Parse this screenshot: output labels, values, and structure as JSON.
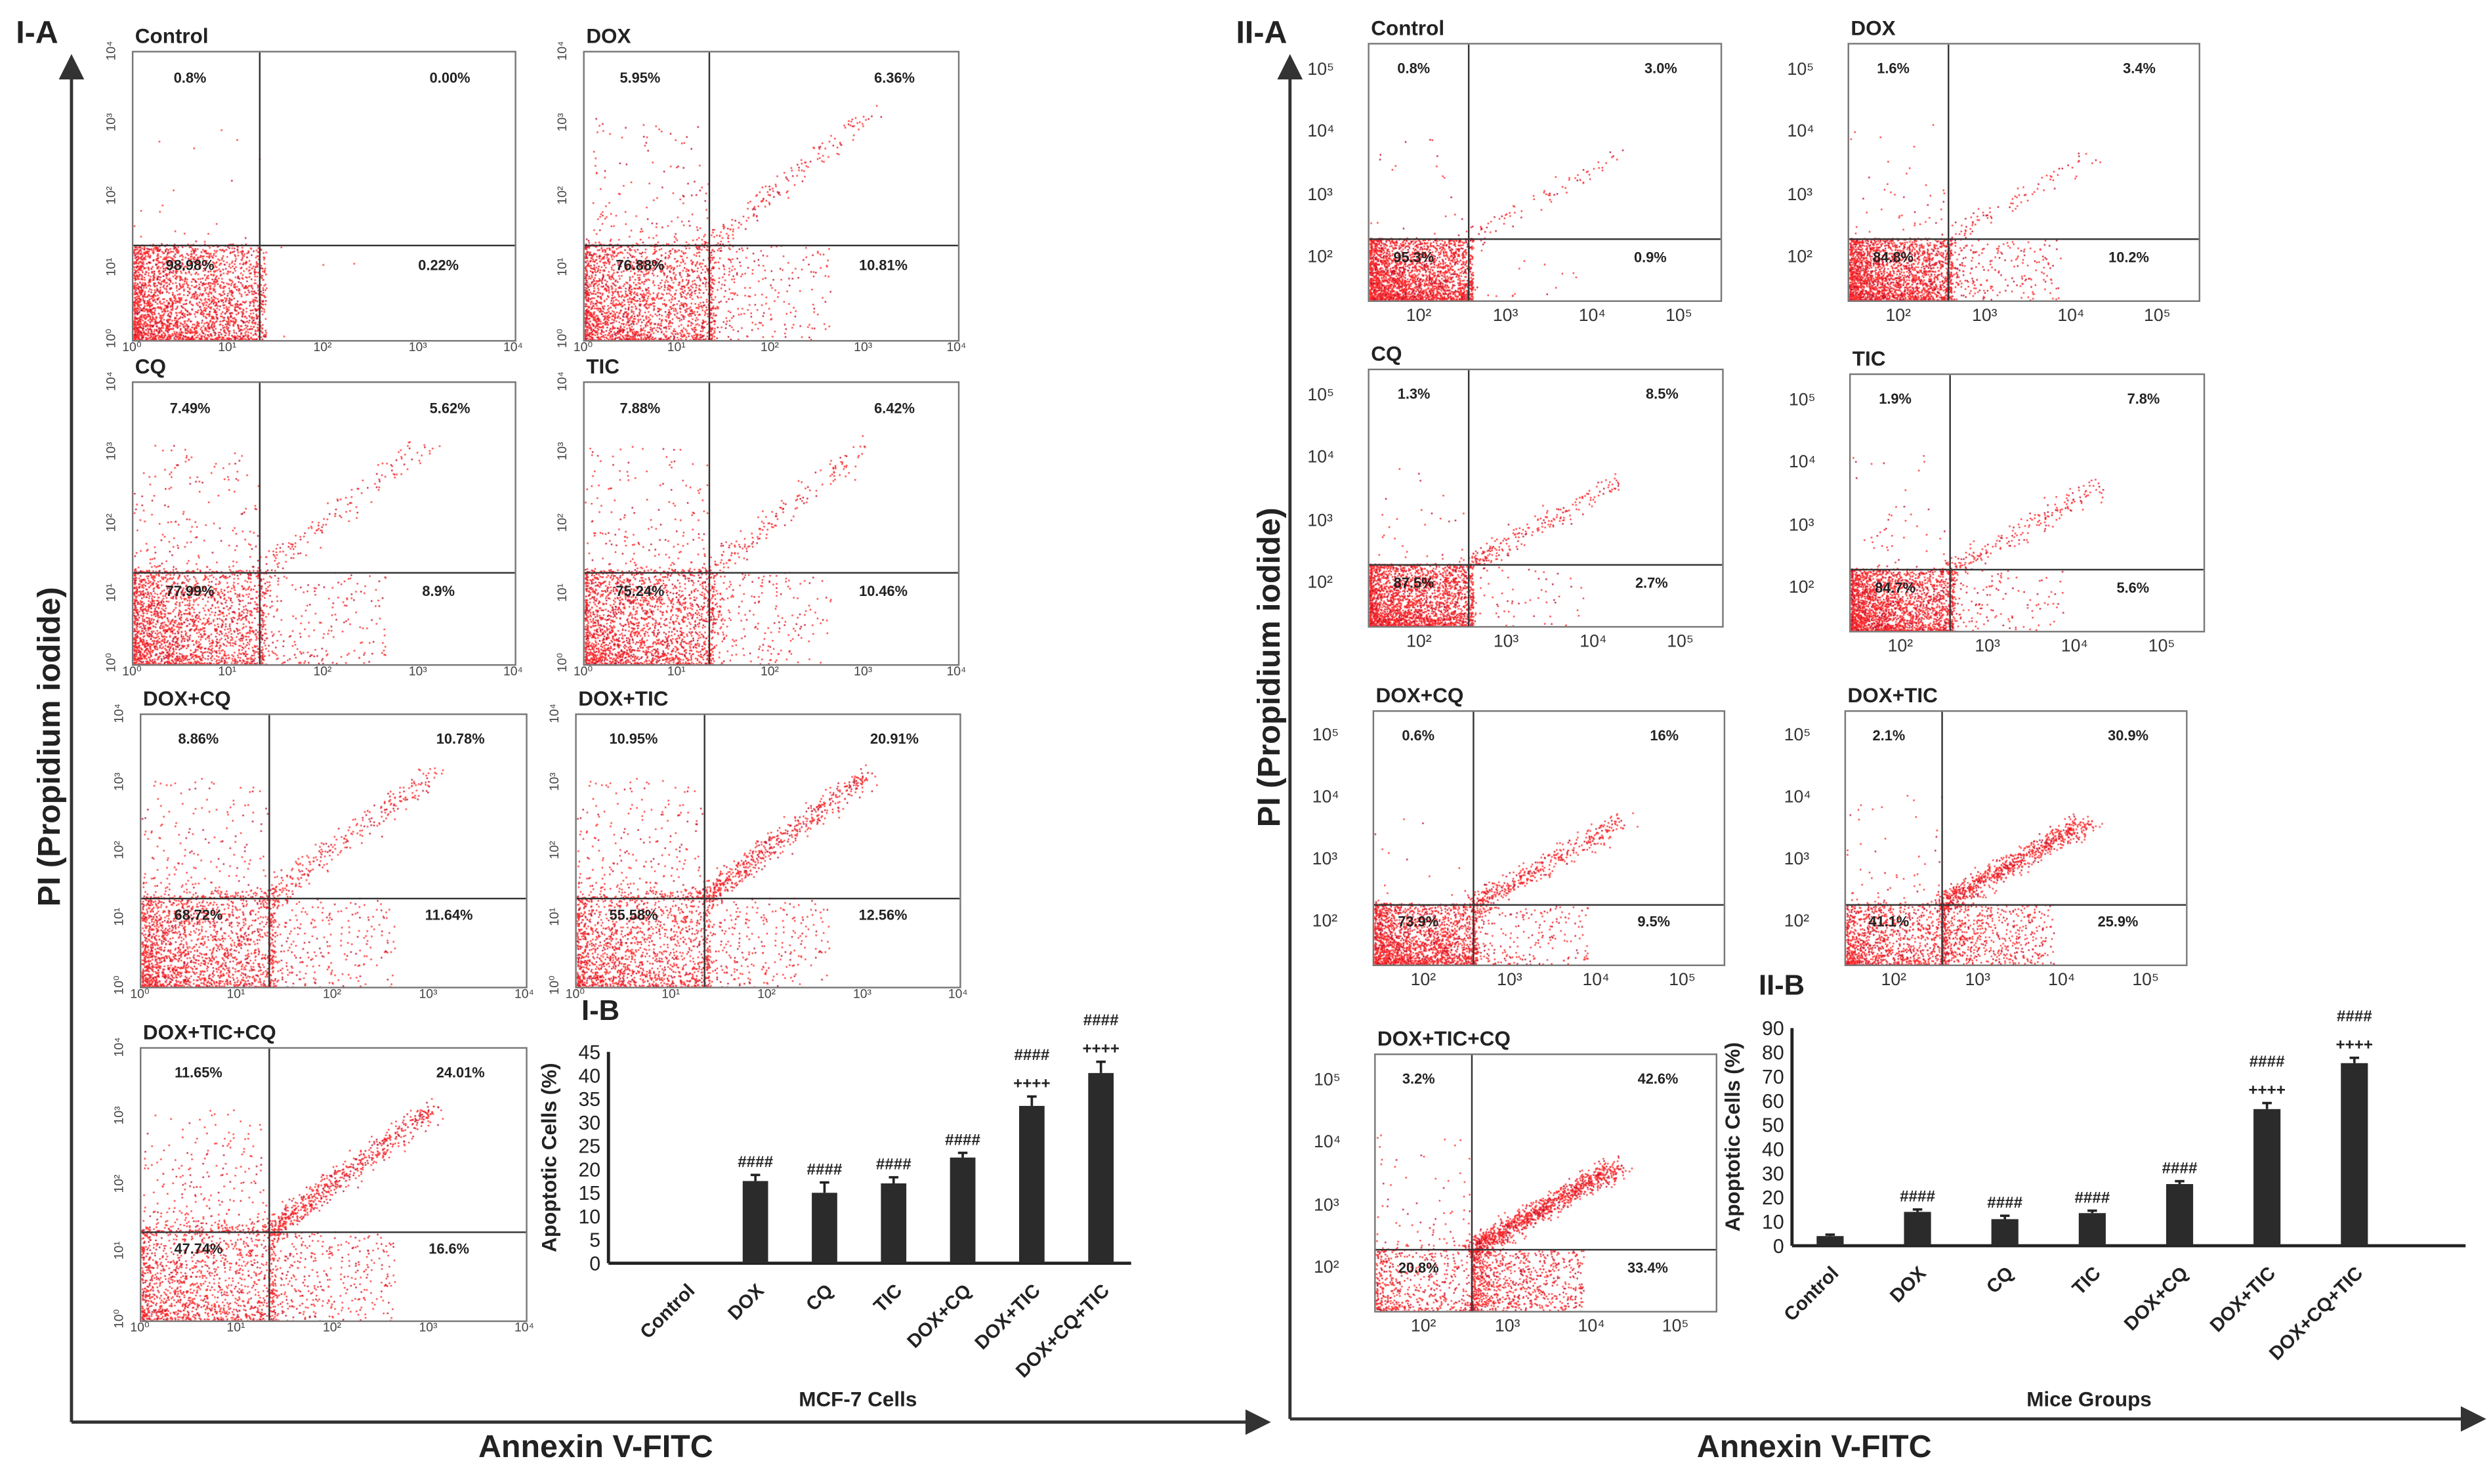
{
  "panel_labels": {
    "IA": "I-A",
    "IB": "I-B",
    "IIA": "II-A",
    "IIB": "II-B"
  },
  "axes": {
    "y_label": "PI (Propidium iodide)",
    "x_label": "Annexin V-FITC"
  },
  "colors": {
    "dots": "#ff2a2a",
    "dots_dark": "#c0102a",
    "bars": "#2b2b2b"
  },
  "chart_data": [
    {
      "type": "scatter",
      "id": "I-A",
      "x_ticks": [
        "10⁰",
        "10¹",
        "10²",
        "10³",
        "10⁴"
      ],
      "y_ticks": [
        "10⁰",
        "10¹",
        "10²",
        "10³",
        "10⁴"
      ],
      "panels": [
        {
          "title": "Control",
          "quadrants": {
            "UL": "0.8%",
            "UR": "0.00%",
            "LL": "98.98%",
            "LR": "0.22%"
          }
        },
        {
          "title": "DOX",
          "quadrants": {
            "UL": "5.95%",
            "UR": "6.36%",
            "LL": "76.88%",
            "LR": "10.81%"
          }
        },
        {
          "title": "CQ",
          "quadrants": {
            "UL": "7.49%",
            "UR": "5.62%",
            "LL": "77.99%",
            "LR": "8.9%"
          }
        },
        {
          "title": "TIC",
          "quadrants": {
            "UL": "7.88%",
            "UR": "6.42%",
            "LL": "75.24%",
            "LR": "10.46%"
          }
        },
        {
          "title": "DOX+CQ",
          "quadrants": {
            "UL": "8.86%",
            "UR": "10.78%",
            "LL": "68.72%",
            "LR": "11.64%"
          }
        },
        {
          "title": "DOX+TIC",
          "quadrants": {
            "UL": "10.95%",
            "UR": "20.91%",
            "LL": "55.58%",
            "LR": "12.56%"
          }
        },
        {
          "title": "DOX+TIC+CQ",
          "quadrants": {
            "UL": "11.65%",
            "UR": "24.01%",
            "LL": "47.74%",
            "LR": "16.6%"
          }
        }
      ]
    },
    {
      "type": "scatter",
      "id": "II-A",
      "x_ticks": [
        "10²",
        "10³",
        "10⁴",
        "10⁵"
      ],
      "y_ticks": [
        "10²",
        "10³",
        "10⁴",
        "10⁵"
      ],
      "panels": [
        {
          "title": "Control",
          "quadrants": {
            "UL": "0.8%",
            "UR": "3.0%",
            "LL": "95.3%",
            "LR": "0.9%"
          }
        },
        {
          "title": "DOX",
          "quadrants": {
            "UL": "1.6%",
            "UR": "3.4%",
            "LL": "84.8%",
            "LR": "10.2%"
          }
        },
        {
          "title": "CQ",
          "quadrants": {
            "UL": "1.3%",
            "UR": "8.5%",
            "LL": "87.5%",
            "LR": "2.7%"
          }
        },
        {
          "title": "TIC",
          "quadrants": {
            "UL": "1.9%",
            "UR": "7.8%",
            "LL": "84.7%",
            "LR": "5.6%"
          }
        },
        {
          "title": "DOX+CQ",
          "quadrants": {
            "UL": "0.6%",
            "UR": "16%",
            "LL": "73.9%",
            "LR": "9.5%"
          }
        },
        {
          "title": "DOX+TIC",
          "quadrants": {
            "UL": "2.1%",
            "UR": "30.9%",
            "LL": "41.1%",
            "LR": "25.9%"
          }
        },
        {
          "title": "DOX+TIC+CQ",
          "quadrants": {
            "UL": "3.2%",
            "UR": "42.6%",
            "LL": "20.8%",
            "LR": "33.4%"
          }
        }
      ]
    },
    {
      "type": "bar",
      "id": "I-B",
      "categories": [
        "Control",
        "DOX",
        "CQ",
        "TIC",
        "DOX+CQ",
        "DOX+TIC",
        "DOX+CQ+TIC"
      ],
      "values": [
        0,
        17.5,
        15,
        17,
        22.5,
        33.5,
        40.5
      ],
      "errors": [
        0,
        1.3,
        2.2,
        1.3,
        1.0,
        2.0,
        2.4
      ],
      "annotations": [
        [],
        [
          "####"
        ],
        [
          "####"
        ],
        [
          "####"
        ],
        [
          "####"
        ],
        [
          "####",
          "++++"
        ],
        [
          "####",
          "++++"
        ]
      ],
      "xlabel": "MCF-7 Cells",
      "ylabel": "Apoptotic Cells (%)",
      "ylim": [
        0,
        45
      ],
      "yticks": [
        "0",
        "5",
        "10",
        "15",
        "20",
        "25",
        "30",
        "35",
        "40",
        "45"
      ]
    },
    {
      "type": "bar",
      "id": "II-B",
      "categories": [
        "Control",
        "DOX",
        "CQ",
        "TIC",
        "DOX+CQ",
        "DOX+TIC",
        "DOX+CQ+TIC"
      ],
      "values": [
        4,
        14,
        11,
        13.5,
        25.5,
        56.5,
        75.5
      ],
      "errors": [
        0.6,
        1.0,
        1.4,
        1.0,
        1.2,
        2.5,
        2.2
      ],
      "annotations": [
        [],
        [
          "####"
        ],
        [
          "####"
        ],
        [
          "####"
        ],
        [
          "####"
        ],
        [
          "####",
          "++++"
        ],
        [
          "####",
          "++++"
        ]
      ],
      "xlabel": "Mice Groups",
      "ylabel": "Apoptotic Cells (%)",
      "ylim": [
        0,
        90
      ],
      "yticks": [
        "0",
        "10",
        "20",
        "30",
        "40",
        "50",
        "60",
        "70",
        "80",
        "90"
      ]
    }
  ]
}
